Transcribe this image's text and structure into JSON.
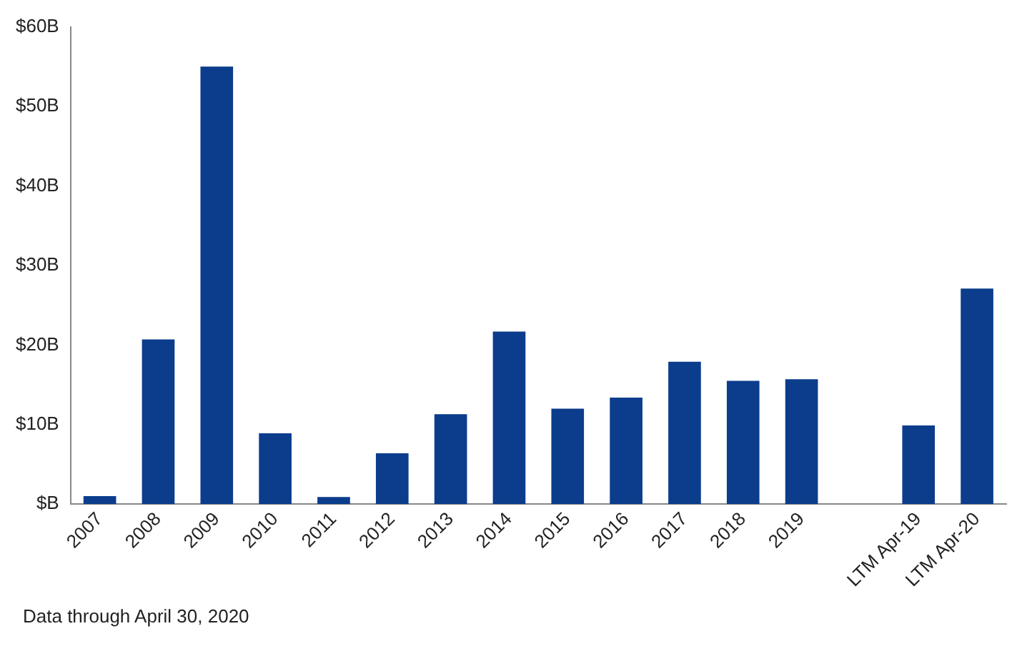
{
  "chart_data": {
    "type": "bar",
    "categories": [
      "2007",
      "2008",
      "2009",
      "2010",
      "2011",
      "2012",
      "2013",
      "2014",
      "2015",
      "2016",
      "2017",
      "2018",
      "2019",
      null,
      "LTM Apr-19",
      "LTM Apr-20"
    ],
    "values": [
      1.0,
      20.7,
      55.0,
      8.9,
      0.9,
      6.4,
      11.3,
      21.7,
      12.0,
      13.4,
      17.9,
      15.5,
      15.7,
      null,
      9.9,
      27.1
    ],
    "color": "#0b3d8c",
    "ylim": [
      0,
      60
    ],
    "yticks": [
      {
        "value": 0,
        "label": "$B"
      },
      {
        "value": 10,
        "label": "$10B"
      },
      {
        "value": 20,
        "label": "$20B"
      },
      {
        "value": 30,
        "label": "$30B"
      },
      {
        "value": 40,
        "label": "$40B"
      },
      {
        "value": 50,
        "label": "$50B"
      },
      {
        "value": 60,
        "label": "$60B"
      }
    ],
    "grid": false,
    "legend": false,
    "annotations": [
      "Data through April 30, 2020"
    ]
  }
}
